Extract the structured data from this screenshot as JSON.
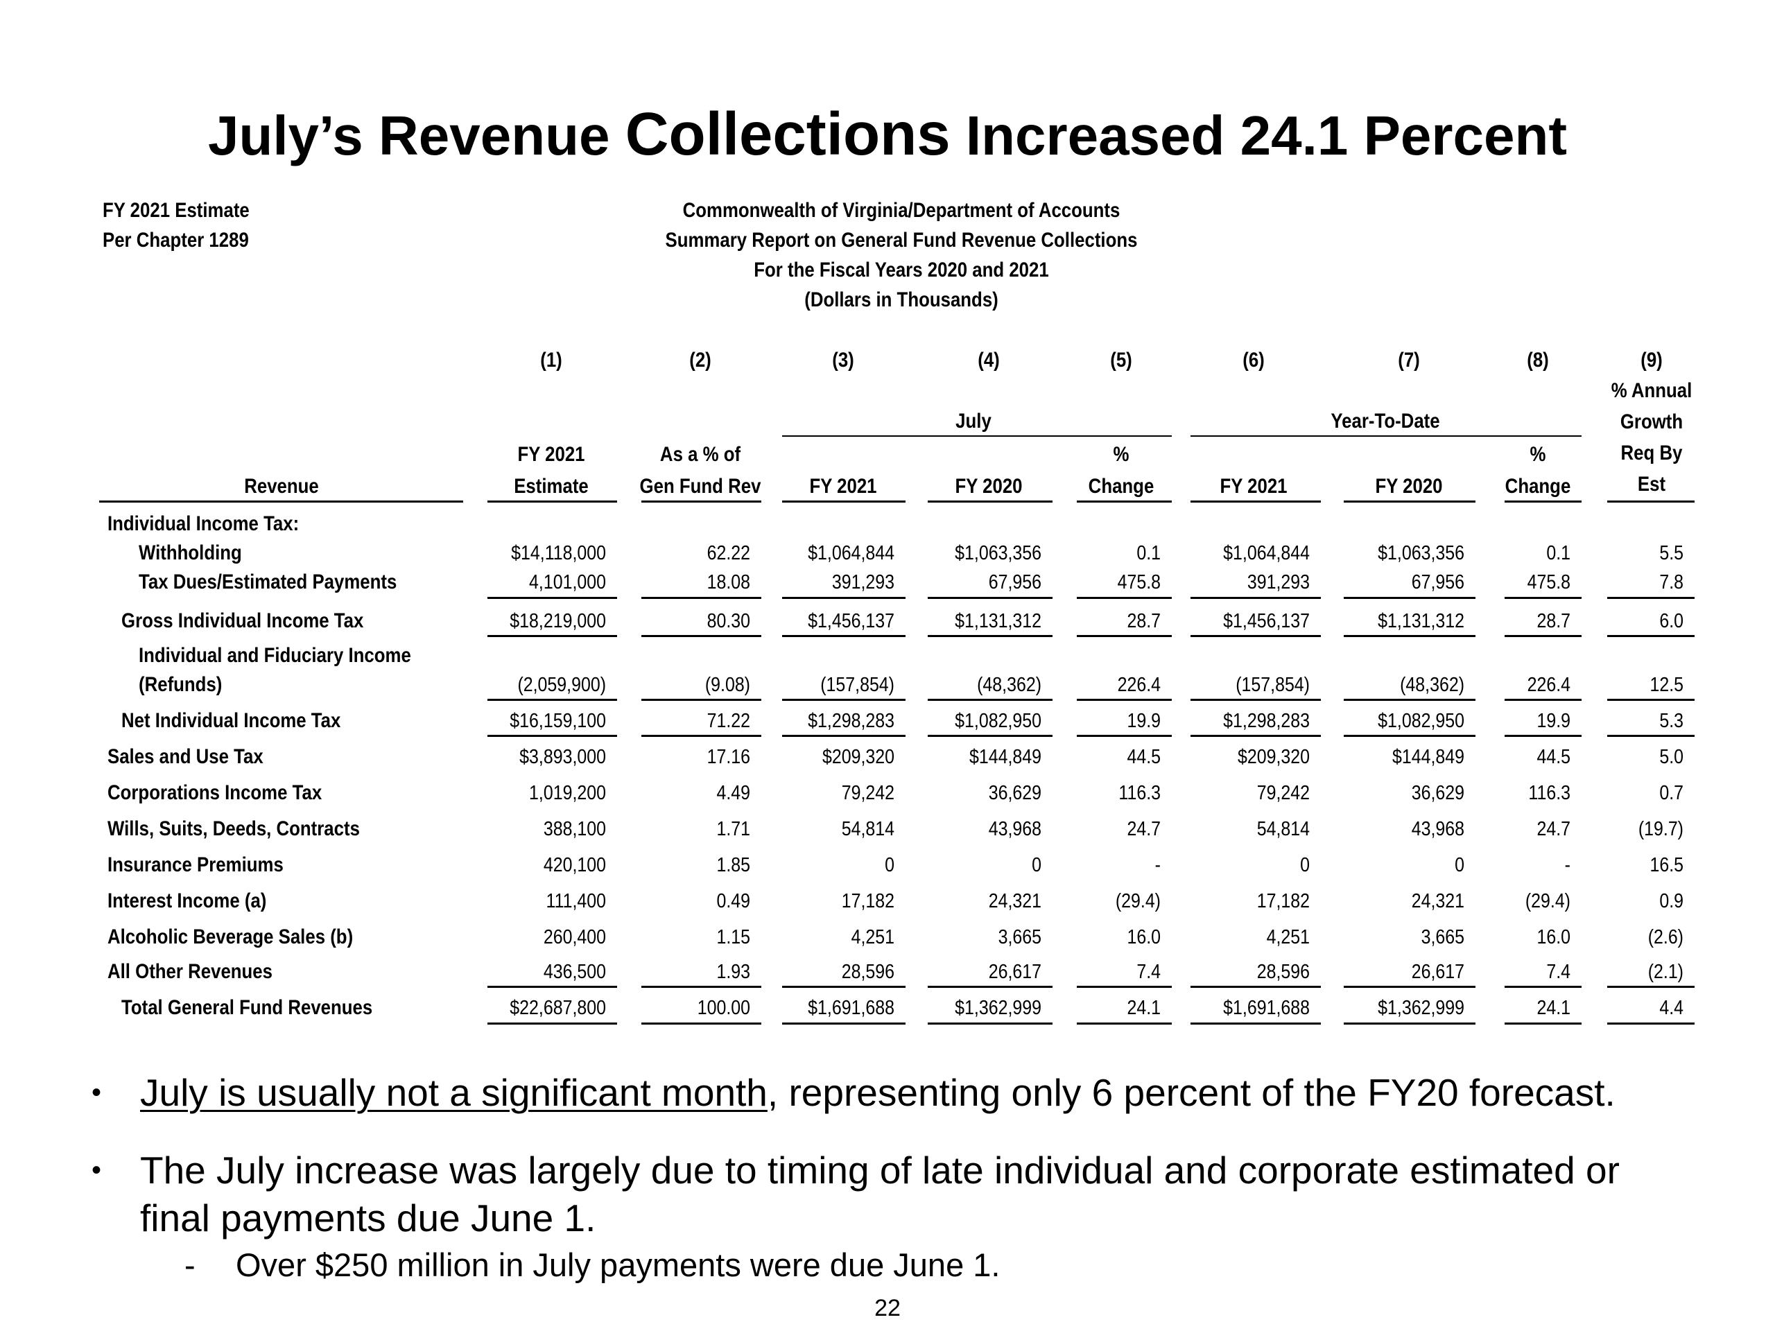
{
  "title": {
    "part1": "July’s Revenue ",
    "part2": "Collections",
    "part3": " Increased 24.1 Percent"
  },
  "header_left": [
    "FY 2021 Estimate",
    "Per Chapter 1289"
  ],
  "header_center": [
    "Commonwealth of Virginia/Department of Accounts",
    "Summary Report on General Fund Revenue Collections",
    "For the Fiscal Years 2020 and 2021",
    "(Dollars in Thousands)"
  ],
  "table": {
    "col_numbers": [
      "(1)",
      "(2)",
      "(3)",
      "(4)",
      "(5)",
      "(6)",
      "(7)",
      "(8)",
      "(9)"
    ],
    "group_july": "July",
    "group_ytd": "Year-To-Date",
    "col9_head": [
      "% Annual",
      "Growth",
      "Req By",
      "Est"
    ],
    "headers": {
      "revenue": "Revenue",
      "c1": [
        "FY 2021",
        "Estimate"
      ],
      "c2": [
        "As a % of",
        "Gen Fund Rev"
      ],
      "c3": "FY 2021",
      "c4": "FY 2020",
      "c5": [
        "%",
        "Change"
      ],
      "c6": "FY 2021",
      "c7": "FY 2020",
      "c8": [
        "%",
        "Change"
      ]
    },
    "section_label": "Individual Income Tax:",
    "rows": [
      {
        "label": "Withholding",
        "v": [
          "$14,118,000",
          "62.22",
          "$1,064,844",
          "$1,063,356",
          "0.1",
          "$1,064,844",
          "$1,063,356",
          "0.1",
          "5.5"
        ]
      },
      {
        "label": "Tax Dues/Estimated Payments",
        "v": [
          "4,101,000",
          "18.08",
          "391,293",
          "67,956",
          "475.8",
          "391,293",
          "67,956",
          "475.8",
          "7.8"
        ]
      },
      {
        "label": "Gross Individual Income Tax",
        "v": [
          "$18,219,000",
          "80.30",
          "$1,456,137",
          "$1,131,312",
          "28.7",
          "$1,456,137",
          "$1,131,312",
          "28.7",
          "6.0"
        ]
      },
      {
        "label": "Individual and Fiduciary Income",
        "label2": "(Refunds)",
        "v": [
          "(2,059,900)",
          "(9.08)",
          "(157,854)",
          "(48,362)",
          "226.4",
          "(157,854)",
          "(48,362)",
          "226.4",
          "12.5"
        ]
      },
      {
        "label": "Net Individual Income Tax",
        "v": [
          "$16,159,100",
          "71.22",
          "$1,298,283",
          "$1,082,950",
          "19.9",
          "$1,298,283",
          "$1,082,950",
          "19.9",
          "5.3"
        ]
      },
      {
        "label": "Sales and Use Tax",
        "v": [
          "$3,893,000",
          "17.16",
          "$209,320",
          "$144,849",
          "44.5",
          "$209,320",
          "$144,849",
          "44.5",
          "5.0"
        ]
      },
      {
        "label": "Corporations Income Tax",
        "v": [
          "1,019,200",
          "4.49",
          "79,242",
          "36,629",
          "116.3",
          "79,242",
          "36,629",
          "116.3",
          "0.7"
        ]
      },
      {
        "label": "Wills, Suits, Deeds, Contracts",
        "v": [
          "388,100",
          "1.71",
          "54,814",
          "43,968",
          "24.7",
          "54,814",
          "43,968",
          "24.7",
          "(19.7)"
        ]
      },
      {
        "label": "Insurance Premiums",
        "v": [
          "420,100",
          "1.85",
          "0",
          "0",
          "-",
          "0",
          "0",
          "-",
          "16.5"
        ]
      },
      {
        "label": "Interest Income (a)",
        "v": [
          "111,400",
          "0.49",
          "17,182",
          "24,321",
          "(29.4)",
          "17,182",
          "24,321",
          "(29.4)",
          "0.9"
        ]
      },
      {
        "label": "Alcoholic Beverage Sales (b)",
        "v": [
          "260,400",
          "1.15",
          "4,251",
          "3,665",
          "16.0",
          "4,251",
          "3,665",
          "16.0",
          "(2.6)"
        ]
      },
      {
        "label": "All Other Revenues",
        "v": [
          "436,500",
          "1.93",
          "28,596",
          "26,617",
          "7.4",
          "28,596",
          "26,617",
          "7.4",
          "(2.1)"
        ]
      },
      {
        "label": "Total General Fund Revenues",
        "v": [
          "$22,687,800",
          "100.00",
          "$1,691,688",
          "$1,362,999",
          "24.1",
          "$1,691,688",
          "$1,362,999",
          "24.1",
          "4.4"
        ]
      }
    ]
  },
  "bullets": {
    "b1_underlined": "July is usually not a significant month",
    "b1_rest": ", representing only 6 percent of the FY20 forecast.",
    "b2_line1": "The July increase was largely due to timing of late individual and corporate estimated or",
    "b2_line2": "final payments due June 1.",
    "sub_dash": "-",
    "sub1": "Over $250 million in July payments were due June 1."
  },
  "page_number": "22"
}
